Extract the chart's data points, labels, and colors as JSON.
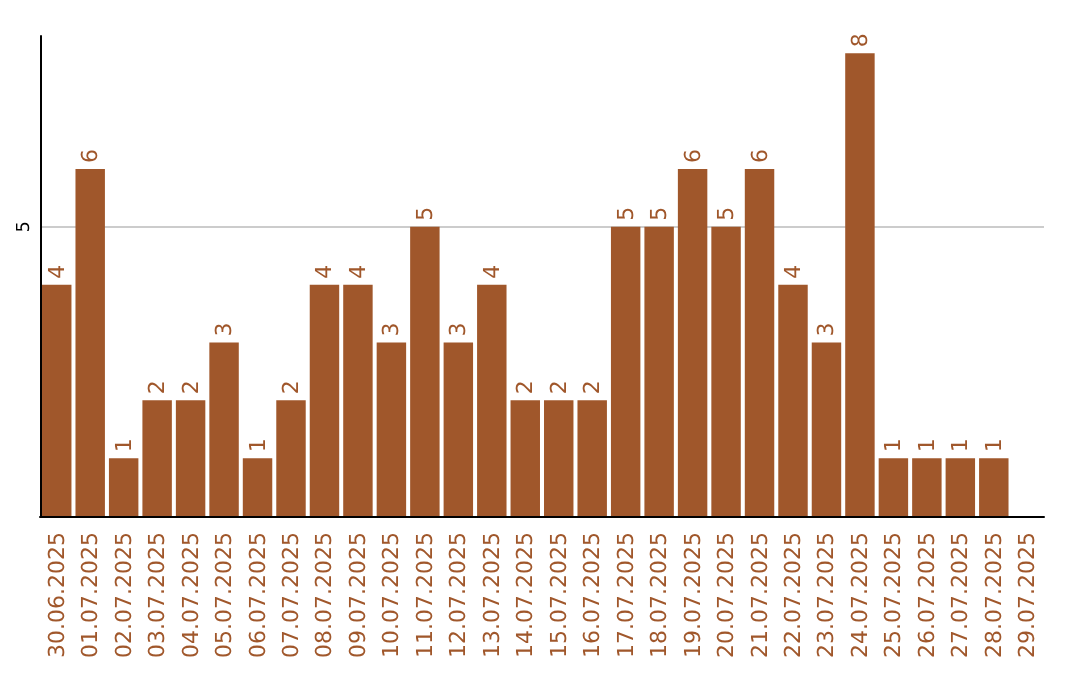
{
  "chart_data": {
    "type": "bar",
    "categories": [
      "30.06.2025",
      "01.07.2025",
      "02.07.2025",
      "03.07.2025",
      "04.07.2025",
      "05.07.2025",
      "06.07.2025",
      "07.07.2025",
      "08.07.2025",
      "09.07.2025",
      "10.07.2025",
      "11.07.2025",
      "12.07.2025",
      "13.07.2025",
      "14.07.2025",
      "15.07.2025",
      "16.07.2025",
      "17.07.2025",
      "18.07.2025",
      "19.07.2025",
      "20.07.2025",
      "21.07.2025",
      "22.07.2025",
      "23.07.2025",
      "24.07.2025",
      "25.07.2025",
      "26.07.2025",
      "27.07.2025",
      "28.07.2025",
      "29.07.2025"
    ],
    "values": [
      4,
      6,
      1,
      2,
      2,
      3,
      1,
      2,
      4,
      4,
      3,
      5,
      3,
      4,
      2,
      2,
      2,
      5,
      5,
      6,
      5,
      6,
      4,
      3,
      8,
      1,
      1,
      1,
      1,
      null
    ],
    "color": "#a0572b",
    "ylim": [
      0,
      8.3
    ],
    "yticks": [
      5
    ],
    "grid": "y",
    "data_labels": true
  }
}
